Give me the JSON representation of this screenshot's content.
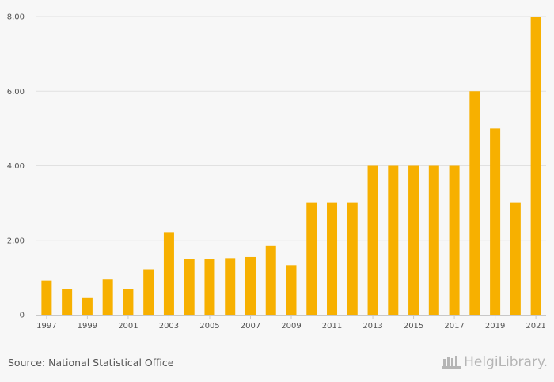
{
  "chart_data": {
    "type": "bar",
    "categories": [
      "1997",
      "1998",
      "1999",
      "2000",
      "2001",
      "2002",
      "2003",
      "2004",
      "2005",
      "2006",
      "2007",
      "2008",
      "2009",
      "2010",
      "2011",
      "2012",
      "2013",
      "2014",
      "2015",
      "2016",
      "2017",
      "2018",
      "2019",
      "2020",
      "2021"
    ],
    "values": [
      0.92,
      0.68,
      0.45,
      0.95,
      0.7,
      1.22,
      2.22,
      1.5,
      1.5,
      1.52,
      1.55,
      1.85,
      1.33,
      3.0,
      3.0,
      3.0,
      4.0,
      4.0,
      4.0,
      4.0,
      4.0,
      6.0,
      5.0,
      3.0,
      8.0
    ],
    "x_tick_labels": [
      "1997",
      "1999",
      "2001",
      "2003",
      "2005",
      "2007",
      "2009",
      "2011",
      "2013",
      "2015",
      "2017",
      "2019",
      "2021"
    ],
    "y_tick_labels": [
      "0",
      "2.00",
      "4.00",
      "6.00",
      "8.00"
    ],
    "ylim": [
      0,
      8
    ],
    "title": "",
    "xlabel": "",
    "ylabel": "",
    "grid": true,
    "bar_color": "#f7b000"
  },
  "footer": {
    "source": "Source: National Statistical Office",
    "logo_text": "HelgiLibrary."
  }
}
